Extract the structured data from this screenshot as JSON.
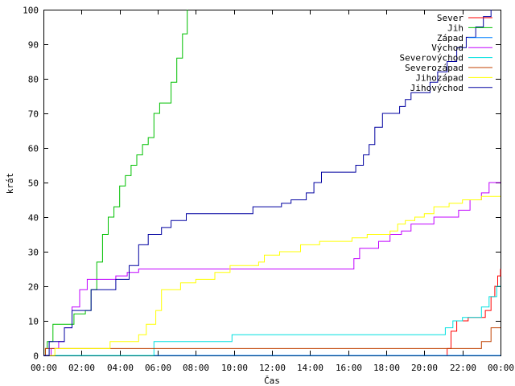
{
  "chart_data": {
    "type": "line",
    "title": "",
    "xlabel": "Čas",
    "ylabel": "krát",
    "xlim": [
      0,
      24
    ],
    "ylim": [
      0,
      100
    ],
    "x_unit": "hours",
    "grid": false,
    "legend_position": "top-right",
    "x_ticks": [
      "00:00",
      "02:00",
      "04:00",
      "06:00",
      "08:00",
      "10:00",
      "12:00",
      "14:00",
      "16:00",
      "18:00",
      "20:00",
      "22:00",
      "00:00"
    ],
    "y_ticks": [
      "0",
      "10",
      "20",
      "30",
      "40",
      "50",
      "60",
      "70",
      "80",
      "90",
      "100"
    ],
    "series": [
      {
        "name": "Sever",
        "color": "#ff0000",
        "step": true,
        "x": [
          0,
          21.2,
          21.4,
          21.7,
          22.3,
          22.8,
          23.2,
          23.5,
          23.7,
          23.85,
          24
        ],
        "y": [
          0,
          2,
          7,
          10,
          11,
          11,
          13,
          17,
          20,
          23,
          25
        ]
      },
      {
        "name": "Jih",
        "color": "#00c000",
        "step": true,
        "x": [
          0,
          0.1,
          0.2,
          0.5,
          1.2,
          1.6,
          2.2,
          2.5,
          2.8,
          3.1,
          3.4,
          3.7,
          4.0,
          4.3,
          4.6,
          4.9,
          5.2,
          5.5,
          5.8,
          6.1,
          6.4,
          6.7,
          7.0,
          7.3,
          7.55
        ],
        "y": [
          0,
          2,
          4,
          9,
          9,
          12,
          13,
          19,
          27,
          35,
          40,
          43,
          49,
          52,
          55,
          58,
          61,
          63,
          70,
          73,
          73,
          79,
          86,
          93,
          100
        ]
      },
      {
        "name": "Západ",
        "color": "#0080ff",
        "step": true,
        "x": [
          0,
          24
        ],
        "y": [
          0,
          0
        ]
      },
      {
        "name": "Východ",
        "color": "#c000ff",
        "step": true,
        "x": [
          0,
          0.4,
          0.8,
          1.1,
          1.5,
          1.9,
          2.3,
          3.4,
          3.8,
          4.4,
          5.0,
          9.8,
          16.0,
          16.3,
          16.6,
          17.0,
          17.6,
          18.2,
          18.8,
          19.3,
          19.8,
          20.5,
          21.0,
          21.8,
          22.4,
          23.0,
          23.4,
          24
        ],
        "y": [
          0,
          2,
          4,
          8,
          14,
          19,
          22,
          22,
          23,
          24,
          25,
          25,
          25,
          28,
          31,
          31,
          33,
          35,
          36,
          38,
          38,
          40,
          40,
          42,
          45,
          47,
          50,
          50
        ]
      },
      {
        "name": "Severovýchod",
        "color": "#00e0e0",
        "step": true,
        "x": [
          0,
          5.8,
          9.9,
          20.9,
          21.1,
          21.5,
          22.0,
          22.5,
          23.0,
          23.4,
          23.8,
          24
        ],
        "y": [
          0,
          4,
          6,
          6,
          8,
          10,
          11,
          11,
          14,
          17,
          20,
          20
        ]
      },
      {
        "name": "Severozápad",
        "color": "#c04000",
        "step": true,
        "x": [
          0,
          0.1,
          21.4,
          22.4,
          23.0,
          23.5,
          24
        ],
        "y": [
          0,
          2,
          2,
          2,
          4,
          8,
          8
        ]
      },
      {
        "name": "Jihozápad",
        "color": "#ffff00",
        "step": true,
        "x": [
          0,
          0.6,
          3.5,
          4.5,
          5.0,
          5.4,
          5.9,
          6.2,
          6.6,
          7.2,
          8.0,
          9.0,
          9.8,
          11.0,
          11.3,
          11.6,
          12.0,
          12.4,
          13.5,
          14.5,
          15.5,
          16.2,
          17.0,
          17.8,
          18.2,
          18.6,
          19.0,
          19.5,
          20.0,
          20.5,
          21.3,
          22.0,
          23.0,
          24
        ],
        "y": [
          0,
          2,
          4,
          4,
          6,
          9,
          13,
          19,
          19,
          21,
          22,
          24,
          26,
          26,
          27,
          29,
          29,
          30,
          32,
          33,
          33,
          34,
          35,
          35,
          36,
          38,
          39,
          40,
          41,
          43,
          44,
          45,
          46,
          46
        ]
      },
      {
        "name": "Jihovýchod",
        "color": "#0000a0",
        "step": true,
        "x": [
          0,
          0.3,
          1.1,
          1.5,
          2.5,
          3.3,
          3.8,
          4.5,
          5.0,
          5.5,
          6.2,
          6.7,
          7.5,
          8.5,
          10.0,
          11.0,
          12.5,
          13.0,
          13.8,
          14.2,
          14.6,
          15.5,
          16.4,
          16.8,
          17.1,
          17.4,
          17.8,
          18.2,
          18.7,
          19.0,
          19.3,
          19.9,
          20.3,
          20.7,
          21.2,
          21.7,
          22.2,
          22.7,
          23.1,
          23.5
        ],
        "y": [
          0,
          4,
          8,
          13,
          19,
          19,
          22,
          26,
          32,
          35,
          37,
          39,
          41,
          41,
          41,
          43,
          44,
          45,
          47,
          50,
          53,
          53,
          55,
          58,
          61,
          66,
          70,
          70,
          72,
          74,
          76,
          76,
          79,
          82,
          85,
          89,
          92,
          95,
          98,
          100
        ]
      }
    ]
  }
}
